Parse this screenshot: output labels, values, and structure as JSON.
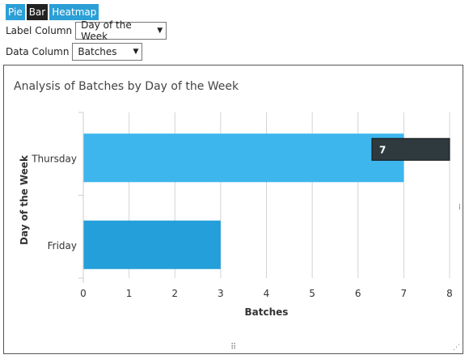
{
  "toolbar": {
    "tabs": [
      {
        "label": "Pie",
        "active": false
      },
      {
        "label": "Bar",
        "active": true
      },
      {
        "label": "Heatmap",
        "active": false
      }
    ]
  },
  "controls": {
    "label_column": {
      "label": "Label Column",
      "value": "Day of the Week"
    },
    "data_column": {
      "label": "Data Column",
      "value": "Batches"
    }
  },
  "colors": {
    "bar_thursday": "#3db6ee",
    "bar_friday": "#249fd9",
    "tooltip_bg": "#2f3a3e",
    "active_tab": "#222222",
    "tab": "#2b9fd6"
  },
  "tooltip": {
    "value": "7"
  },
  "chart_data": {
    "type": "bar",
    "orientation": "horizontal",
    "title": "Analysis of Batches by Day of the Week",
    "categories": [
      "Thursday",
      "Friday"
    ],
    "values": [
      7,
      3
    ],
    "xlabel": "Batches",
    "ylabel": "Day of the Week",
    "xlim": [
      0,
      8
    ],
    "xticks": [
      "0",
      "1",
      "2",
      "3",
      "4",
      "5",
      "6",
      "7",
      "8"
    ],
    "grid": true
  }
}
